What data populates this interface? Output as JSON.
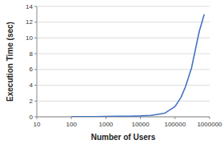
{
  "chart_data": {
    "type": "line",
    "xlabel": "Number of Users",
    "ylabel": "Execution Time (sec)",
    "x": [
      100,
      200,
      500,
      1000,
      2000,
      5000,
      10000,
      20000,
      50000,
      100000,
      150000,
      200000,
      300000,
      500000,
      700000
    ],
    "values": [
      0.02,
      0.025,
      0.03,
      0.04,
      0.06,
      0.08,
      0.11,
      0.18,
      0.45,
      1.3,
      2.5,
      3.8,
      6.2,
      10.8,
      13.0
    ],
    "color": "#4472C4",
    "log": "x",
    "xlim": [
      10,
      1000000
    ],
    "ylim": [
      0,
      14
    ],
    "xticks": [
      10,
      100,
      1000,
      10000,
      100000,
      1000000
    ],
    "yticks": [
      0,
      2,
      4,
      6,
      8,
      10,
      12,
      14
    ],
    "grid": "y"
  }
}
